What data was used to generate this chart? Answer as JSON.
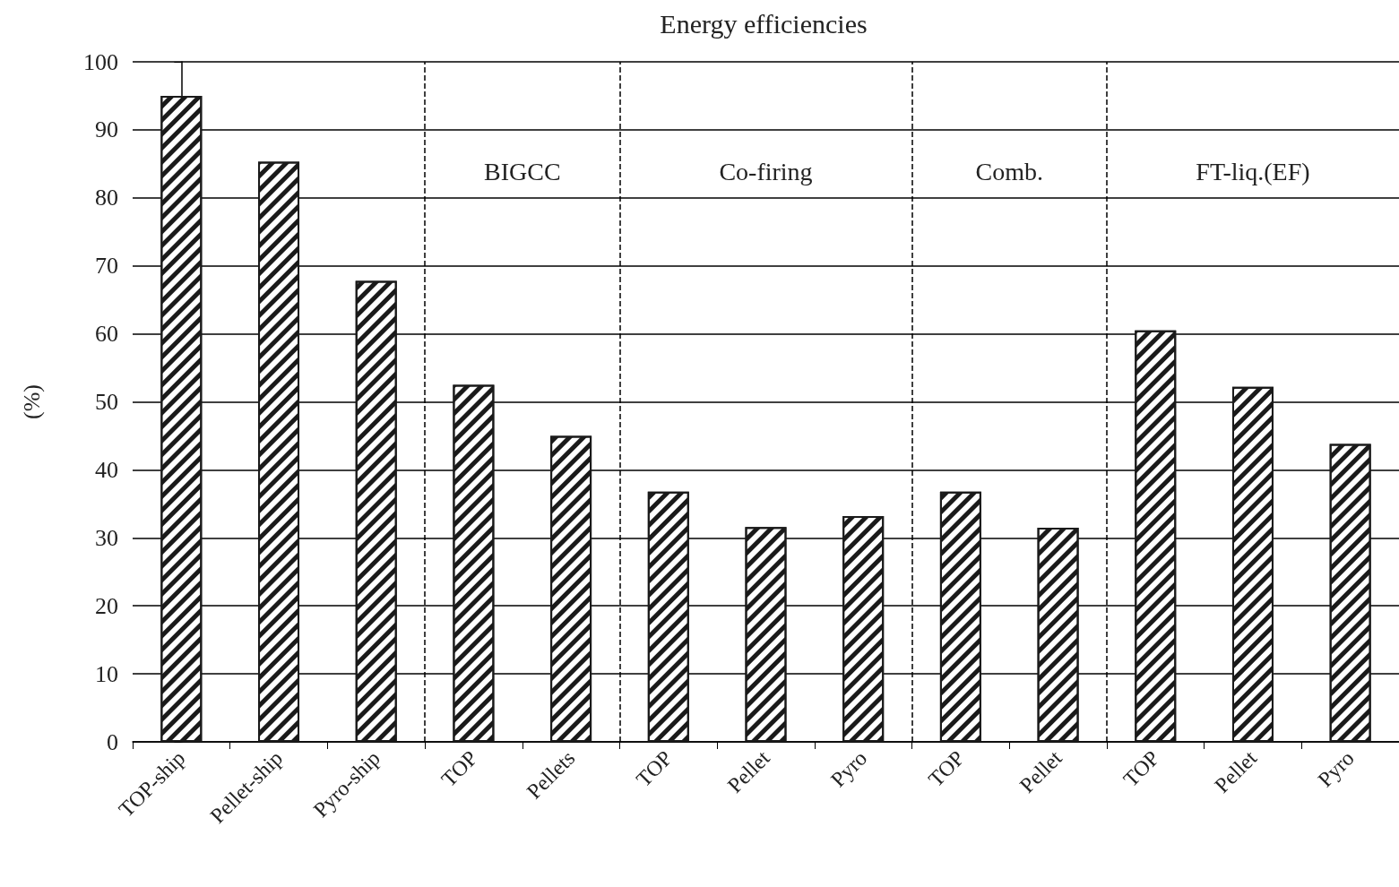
{
  "chart_data": {
    "type": "bar",
    "title": "Energy efficiencies",
    "ylabel": "(%)",
    "categories": [
      "TOP-ship",
      "Pellet-ship",
      "Pyro-ship",
      "TOP",
      "Pellets",
      "TOP",
      "Pellet",
      "Pyro",
      "TOP",
      "Pellet",
      "TOP",
      "Pellet",
      "Pyro"
    ],
    "values": [
      95,
      85.3,
      67.8,
      52.5,
      45,
      36.8,
      31.6,
      33.2,
      36.8,
      31.5,
      60.5,
      52.2,
      43.8
    ],
    "color": "#1a1a1a",
    "ylim": [
      0,
      100
    ],
    "yticks": [
      0,
      10,
      20,
      30,
      40,
      50,
      60,
      70,
      80,
      90,
      100
    ],
    "grid": "y",
    "annotations": [
      "BIGCC",
      "Co-firing",
      "Comb.",
      "FT-liq.(EF)"
    ]
  }
}
